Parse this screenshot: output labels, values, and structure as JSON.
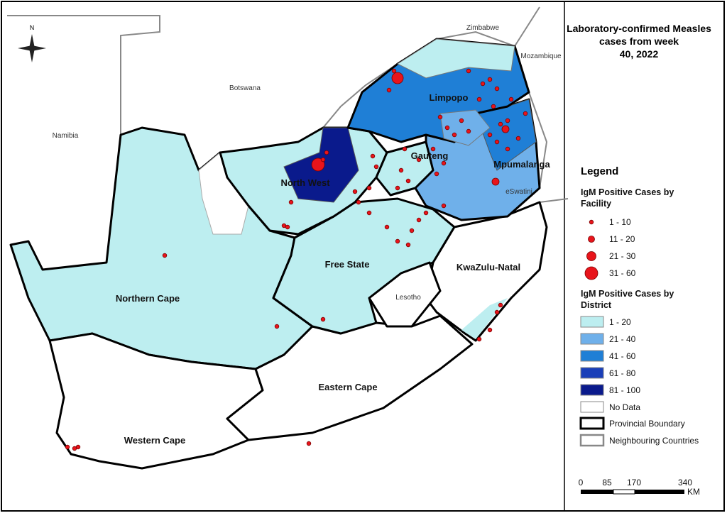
{
  "title": "Laboratory-confirmed Measles cases from week 40, 2022",
  "north": "N",
  "countries": [
    "Zimbabwe",
    "Mozambique",
    "Botswana",
    "Namibia",
    "eSwatini",
    "Lesotho"
  ],
  "provinces": [
    "Limpopo",
    "Mpumalanga",
    "Gauteng",
    "North West",
    "Free State",
    "KwaZulu-Natal",
    "Northern Cape",
    "Eastern Cape",
    "Western Cape"
  ],
  "legend": {
    "title": "Legend",
    "facility": {
      "title": "IgM Positive Cases by Facility",
      "items": [
        "1 - 10",
        "11 - 20",
        "21 - 30",
        "31 - 60"
      ]
    },
    "district": {
      "title": "IgM Positive Cases by District",
      "items": [
        "1 - 20",
        "21 - 40",
        "41 - 60",
        "61 - 80",
        "81 - 100",
        "No Data"
      ]
    },
    "boundaries": [
      "Provincial Boundary",
      "Neighbouring Countries"
    ]
  },
  "scale": {
    "labels": [
      "0",
      "85",
      "170",
      "340"
    ],
    "unit": "KM"
  }
}
